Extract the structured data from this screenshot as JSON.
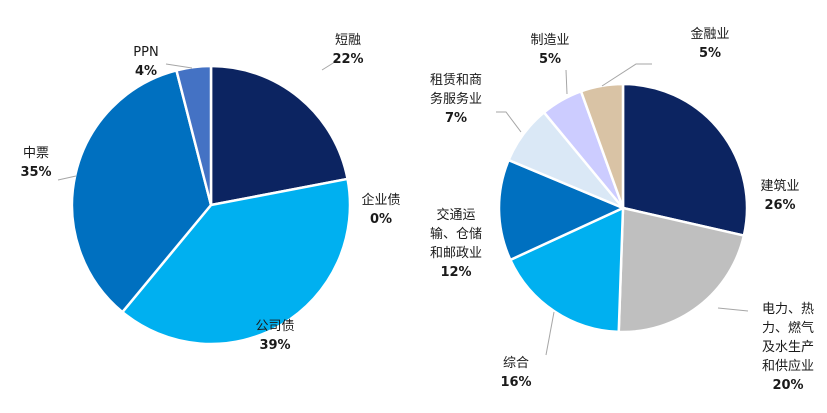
{
  "chart_data": [
    {
      "type": "pie",
      "slices": [
        {
          "label": "短融",
          "value": 22,
          "pct_label": "22%",
          "color": "#0c2461"
        },
        {
          "label": "企业债",
          "value": 0,
          "pct_label": "0%",
          "color": "#0b3a86"
        },
        {
          "label": "公司债",
          "value": 39,
          "pct_label": "39%",
          "color": "#00b0f0"
        },
        {
          "label": "中票",
          "value": 35,
          "pct_label": "35%",
          "color": "#0070c0"
        },
        {
          "label": "PPN",
          "value": 4,
          "pct_label": "4%",
          "color": "#4472c4"
        }
      ]
    },
    {
      "type": "pie",
      "slices": [
        {
          "label": "建筑业",
          "value": 26,
          "pct_label": "26%",
          "color": "#0c2461"
        },
        {
          "label": "电力、热力、燃气及水生产和供应业",
          "label_lines": [
            "电力、热",
            "力、燃气",
            "及水生产",
            "和供应业"
          ],
          "value": 20,
          "pct_label": "20%",
          "color": "#bfbfbf"
        },
        {
          "label": "综合",
          "value": 16,
          "pct_label": "16%",
          "color": "#00b0f0"
        },
        {
          "label": "交通运输、仓储和邮政业",
          "label_lines": [
            "交通运",
            "输、仓储",
            "和邮政业"
          ],
          "value": 12,
          "pct_label": "12%",
          "color": "#0070c0"
        },
        {
          "label": "租赁和商务服务业",
          "label_lines": [
            "租赁和商",
            "务服务业"
          ],
          "value": 7,
          "pct_label": "7%",
          "color": "#dae8f6"
        },
        {
          "label": "制造业",
          "value": 5,
          "pct_label": "5%",
          "color": "#ccccff"
        },
        {
          "label": "金融业",
          "value": 5,
          "pct_label": "5%",
          "color": "#d9c3a5"
        }
      ]
    }
  ]
}
